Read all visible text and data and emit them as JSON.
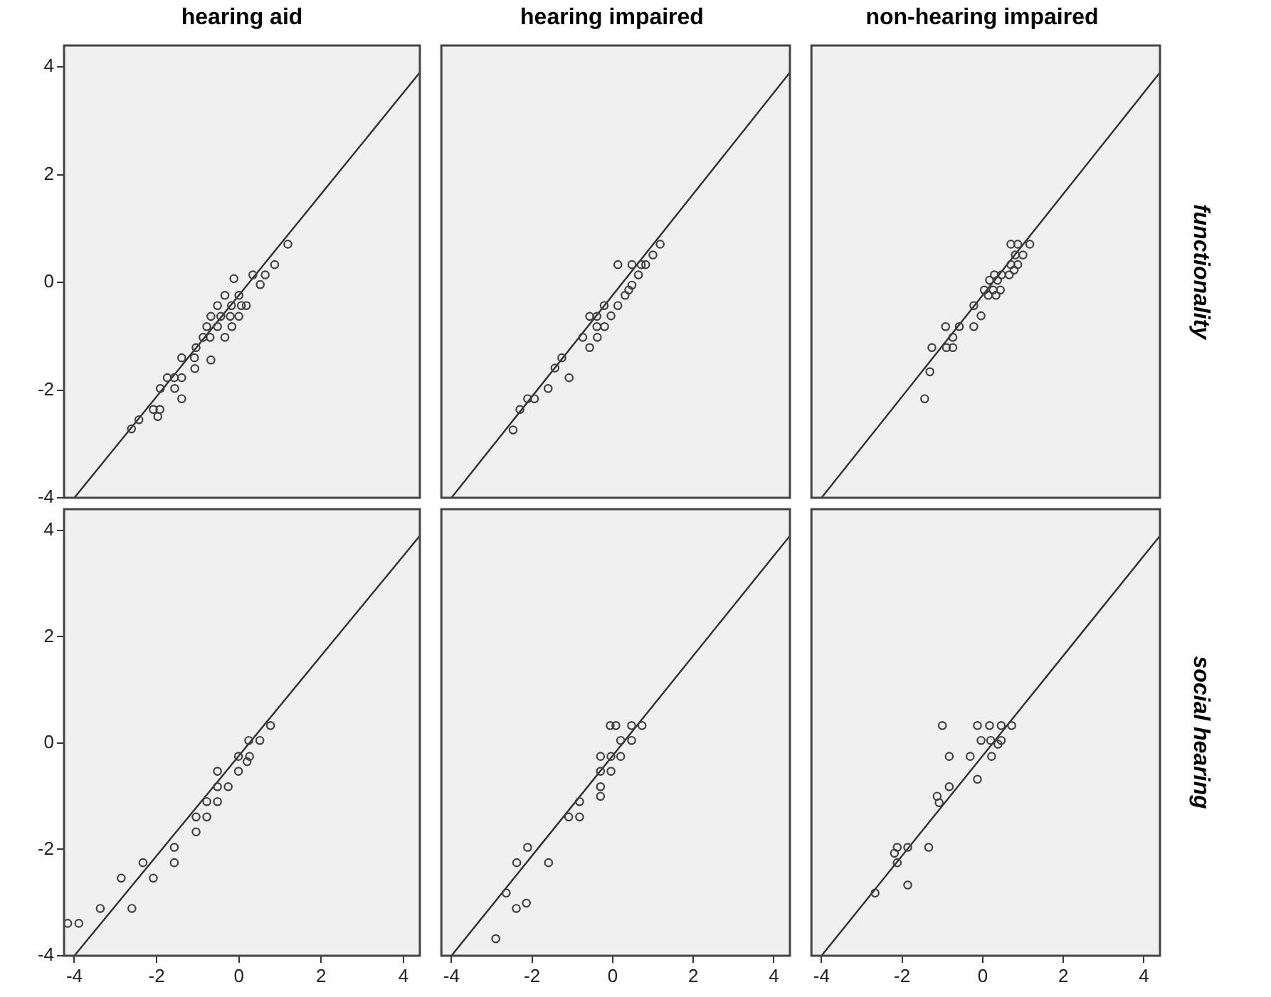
{
  "chart_data": [
    {
      "type": "scatter",
      "title": "hearing aid",
      "xlim": [
        -4.25,
        4.4
      ],
      "ylim": [
        -4,
        4.4
      ],
      "xticks": [
        -4,
        -2,
        0,
        2,
        4
      ],
      "yticks": [
        -4,
        -2,
        0,
        2,
        4
      ],
      "tick_labels": "y",
      "grid": false,
      "series": [
        {
          "type": "scatter",
          "marker": "circle",
          "color": "#404040",
          "x": [
            1.19,
            0.87,
            0.64,
            0.34,
            0.52,
            -0.12,
            -0.34,
            0,
            0.18,
            0.06,
            -0.18,
            -0.52,
            0,
            -0.21,
            -0.44,
            -0.68,
            -0.52,
            -0.78,
            -0.17,
            -0.87,
            -0.7,
            -0.34,
            -1.04,
            -0.68,
            -1.39,
            -1.08,
            -1.07,
            -1.74,
            -1.57,
            -1.39,
            -1.91,
            -1.56,
            -1.39,
            -2.08,
            -1.92,
            -1.97,
            -2.43,
            -2.61
          ],
          "values": [
            0.71,
            0.33,
            0.14,
            0.14,
            -0.04,
            0.07,
            -0.24,
            -0.24,
            -0.43,
            -0.43,
            -0.43,
            -0.43,
            -0.63,
            -0.63,
            -0.63,
            -0.63,
            -0.82,
            -0.82,
            -0.82,
            -1.02,
            -1.02,
            -1.02,
            -1.21,
            -1.44,
            -1.4,
            -1.4,
            -1.6,
            -1.77,
            -1.77,
            -1.77,
            -1.97,
            -1.97,
            -2.16,
            -2.36,
            -2.36,
            -2.49,
            -2.55,
            -2.72
          ]
        },
        {
          "type": "line",
          "color": "#303030",
          "x": [
            -4,
            4.4
          ],
          "values": [
            -4,
            3.9
          ]
        }
      ]
    },
    {
      "type": "scatter",
      "title": "hearing impaired",
      "xlim": [
        -4.25,
        4.4
      ],
      "ylim": [
        -4,
        4.4
      ],
      "xticks": [
        -4,
        -2,
        0,
        2,
        4
      ],
      "yticks": [
        -4,
        -2,
        0,
        2,
        4
      ],
      "tick_labels": false,
      "grid": false,
      "series": [
        {
          "type": "scatter",
          "marker": "circle",
          "color": "#404040",
          "x": [
            1.18,
            1.0,
            0.82,
            0.71,
            0.48,
            0.13,
            0.64,
            0.48,
            0.4,
            0.31,
            0.13,
            -0.21,
            -0.04,
            -0.2,
            -0.39,
            -0.57,
            -0.39,
            -0.38,
            -0.57,
            -0.74,
            -1.26,
            -1.43,
            -1.08,
            -1.6,
            -1.94,
            -2.11,
            -2.3,
            -2.47
          ],
          "values": [
            0.71,
            0.51,
            0.33,
            0.33,
            0.33,
            0.33,
            0.14,
            -0.05,
            -0.14,
            -0.24,
            -0.43,
            -0.43,
            -0.62,
            -0.82,
            -0.63,
            -0.63,
            -0.82,
            -1.02,
            -1.21,
            -1.02,
            -1.4,
            -1.59,
            -1.77,
            -1.97,
            -2.16,
            -2.16,
            -2.36,
            -2.74
          ]
        },
        {
          "type": "line",
          "color": "#303030",
          "x": [
            -4,
            4.4
          ],
          "values": [
            -4,
            3.9
          ]
        }
      ]
    },
    {
      "type": "scatter",
      "title": "non-hearing impaired",
      "y2label": "functionality",
      "xlim": [
        -4.25,
        4.4
      ],
      "ylim": [
        -4,
        4.4
      ],
      "xticks": [
        -4,
        -2,
        0,
        2,
        4
      ],
      "yticks": [
        -4,
        -2,
        0,
        2,
        4
      ],
      "tick_labels": false,
      "grid": false,
      "series": [
        {
          "type": "scatter",
          "marker": "circle",
          "color": "#404040",
          "x": [
            1.17,
            0.87,
            0.7,
            1.0,
            0.81,
            0.87,
            0.7,
            0.78,
            0.66,
            0.47,
            0.29,
            0.17,
            0.37,
            0.04,
            0.26,
            0.44,
            0.14,
            0.33,
            -0.22,
            -0.04,
            -0.22,
            -0.58,
            -0.92,
            -0.74,
            -0.9,
            -0.74,
            -1.26,
            -1.31,
            -1.44
          ],
          "values": [
            0.71,
            0.71,
            0.71,
            0.51,
            0.51,
            0.33,
            0.33,
            0.23,
            0.14,
            0.14,
            0.14,
            0.04,
            0.04,
            -0.14,
            -0.14,
            -0.14,
            -0.24,
            -0.24,
            -0.43,
            -0.62,
            -0.82,
            -0.82,
            -0.82,
            -1.02,
            -1.21,
            -1.21,
            -1.21,
            -1.66,
            -2.16
          ]
        },
        {
          "type": "line",
          "color": "#303030",
          "x": [
            -4,
            4.4
          ],
          "values": [
            -4,
            3.9
          ]
        }
      ]
    },
    {
      "type": "scatter",
      "xlim": [
        -4.25,
        4.4
      ],
      "ylim": [
        -4,
        4.4
      ],
      "xticks": [
        -4,
        -2,
        0,
        2,
        4
      ],
      "yticks": [
        -4,
        -2,
        0,
        2,
        4
      ],
      "grid": false,
      "series": [
        {
          "type": "scatter",
          "marker": "circle",
          "color": "#404040",
          "x": [
            0.77,
            0.51,
            0.24,
            0.26,
            0.2,
            -0.01,
            -0.01,
            -0.52,
            -0.52,
            -0.26,
            -0.78,
            -0.52,
            -1.04,
            -0.78,
            -1.04,
            -1.57,
            -1.57,
            -2.33,
            -2.86,
            -2.08,
            -3.37,
            -2.6,
            -3.89,
            -4.16
          ],
          "values": [
            0.33,
            0.05,
            0.05,
            -0.25,
            -0.35,
            -0.25,
            -0.53,
            -0.53,
            -0.82,
            -0.82,
            -1.1,
            -1.1,
            -1.39,
            -1.39,
            -1.67,
            -1.96,
            -2.25,
            -2.25,
            -2.54,
            -2.54,
            -3.11,
            -3.11,
            -3.39,
            -3.39
          ]
        },
        {
          "type": "line",
          "color": "#303030",
          "x": [
            -4,
            4.4
          ],
          "values": [
            -4,
            3.9
          ]
        }
      ]
    },
    {
      "type": "scatter",
      "xlim": [
        -4.25,
        4.4
      ],
      "ylim": [
        -4,
        4.4
      ],
      "xticks": [
        -4,
        -2,
        0,
        2,
        4
      ],
      "yticks": [
        -4,
        -2,
        0,
        2,
        4
      ],
      "tick_labels": "x",
      "grid": false,
      "series": [
        {
          "type": "scatter",
          "marker": "circle",
          "color": "#404040",
          "x": [
            0.73,
            0.47,
            0.08,
            -0.06,
            0.47,
            0.2,
            0.2,
            -0.04,
            -0.3,
            -0.3,
            -0.04,
            -0.3,
            -0.3,
            -0.82,
            -1.09,
            -0.82,
            -2.11,
            -2.38,
            -1.59,
            -2.64,
            -2.14,
            -2.39,
            -2.9
          ],
          "values": [
            0.33,
            0.33,
            0.33,
            0.33,
            0.05,
            0.05,
            -0.25,
            -0.25,
            -0.25,
            -0.53,
            -0.53,
            -0.82,
            -1.0,
            -1.1,
            -1.39,
            -1.39,
            -1.96,
            -2.25,
            -2.25,
            -2.82,
            -3.01,
            -3.11,
            -3.68
          ]
        },
        {
          "type": "line",
          "color": "#303030",
          "x": [
            -4,
            4.4
          ],
          "values": [
            -4,
            3.9
          ]
        }
      ]
    },
    {
      "type": "scatter",
      "y2label": "social hearing",
      "xlim": [
        -4.25,
        4.4
      ],
      "ylim": [
        -4,
        4.4
      ],
      "xticks": [
        -4,
        -2,
        0,
        2,
        4
      ],
      "yticks": [
        -4,
        -2,
        0,
        2,
        4
      ],
      "tick_labels": "x",
      "grid": false,
      "series": [
        {
          "type": "scatter",
          "marker": "circle",
          "color": "#404040",
          "x": [
            -1.0,
            -0.13,
            0.17,
            0.46,
            0.72,
            -0.04,
            0.2,
            0.46,
            0.38,
            0.22,
            -0.31,
            -0.83,
            -0.13,
            -0.83,
            -1.13,
            -1.08,
            -1.34,
            -1.86,
            -2.12,
            -2.19,
            -2.12,
            -1.86,
            -2.67
          ],
          "values": [
            0.33,
            0.33,
            0.33,
            0.33,
            0.33,
            0.05,
            0.05,
            0.05,
            -0.02,
            -0.25,
            -0.25,
            -0.25,
            -0.68,
            -0.82,
            -1.0,
            -1.12,
            -1.96,
            -1.96,
            -1.96,
            -2.07,
            -2.25,
            -2.67,
            -2.82
          ]
        },
        {
          "type": "line",
          "color": "#303030",
          "x": [
            -4,
            4.4
          ],
          "values": [
            -4,
            3.9
          ]
        }
      ]
    }
  ]
}
